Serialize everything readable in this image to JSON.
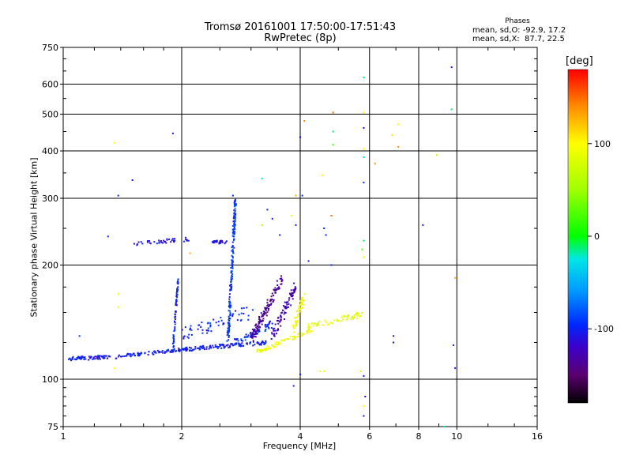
{
  "header": {
    "title_line1": "Tromsø 20161001 17:50:00-17:51:43",
    "title_line2": "RwPretec (8p)",
    "phases_label": "Phases",
    "stat_o": "mean, sd,O: -92.9, 17.2",
    "stat_x": "mean, sd,X:  87.7, 22.5"
  },
  "colorbar": {
    "label": "[deg]",
    "ticks": [
      {
        "value": 100,
        "label": "100"
      },
      {
        "value": 0,
        "label": "0"
      },
      {
        "value": -100,
        "label": "-100"
      }
    ],
    "range": [
      -180,
      180
    ]
  },
  "chart_data": {
    "type": "scatter",
    "title": "Tromsø 20161001 17:50:00-17:51:43",
    "subtitle": "RwPretec (8p)",
    "xlabel": "Frequency [MHz]",
    "ylabel": "Stationary phase Virtual Height [km]",
    "x_scale": "log",
    "y_scale": "log",
    "xlim": [
      1,
      16
    ],
    "ylim": [
      75,
      750
    ],
    "x_ticks": [
      {
        "value": 1,
        "label": "1"
      },
      {
        "value": 2,
        "label": "2"
      },
      {
        "value": 4,
        "label": "4"
      },
      {
        "value": 6,
        "label": "6"
      },
      {
        "value": 8,
        "label": "8"
      },
      {
        "value": 10,
        "label": "10"
      },
      {
        "value": 16,
        "label": "16"
      }
    ],
    "y_ticks": [
      {
        "value": 75,
        "label": "75"
      },
      {
        "value": 100,
        "label": "100"
      },
      {
        "value": 200,
        "label": "200"
      },
      {
        "value": 300,
        "label": "300"
      },
      {
        "value": 400,
        "label": "400"
      },
      {
        "value": 500,
        "label": "500"
      },
      {
        "value": 600,
        "label": "600"
      },
      {
        "value": 750,
        "label": "750"
      }
    ],
    "grid": true,
    "color_variable": "phase [deg]",
    "traces": [
      {
        "f0": 1.02,
        "f1": 1.4,
        "h0": 113,
        "h1": 115,
        "phase": -105,
        "n": 70,
        "jitter": 0.012
      },
      {
        "f0": 1.4,
        "f1": 2.05,
        "h0": 115,
        "h1": 120,
        "phase": -102,
        "n": 90,
        "jitter": 0.01
      },
      {
        "f0": 2.05,
        "f1": 3.3,
        "h0": 120,
        "h1": 125,
        "phase": -100,
        "n": 120,
        "jitter": 0.012
      },
      {
        "f0": 1.9,
        "f1": 1.96,
        "h0": 120,
        "h1": 185,
        "phase": -98,
        "n": 70,
        "jitter": 0.006
      },
      {
        "f0": 1.95,
        "f1": 3.0,
        "h0": 130,
        "h1": 150,
        "phase": -97,
        "n": 60,
        "jitter": 0.04
      },
      {
        "f0": 1.5,
        "f1": 2.1,
        "h0": 228,
        "h1": 234,
        "phase": -108,
        "n": 40,
        "jitter": 0.012
      },
      {
        "f0": 2.4,
        "f1": 2.6,
        "h0": 230,
        "h1": 230,
        "phase": -110,
        "n": 25,
        "jitter": 0.01
      },
      {
        "f0": 2.62,
        "f1": 2.74,
        "h0": 125,
        "h1": 300,
        "phase": -92,
        "n": 180,
        "jitter": 0.012
      },
      {
        "f0": 2.74,
        "f1": 3.4,
        "h0": 125,
        "h1": 140,
        "phase": -95,
        "n": 60,
        "jitter": 0.02
      },
      {
        "f0": 3.0,
        "f1": 3.6,
        "h0": 128,
        "h1": 185,
        "phase": -135,
        "n": 120,
        "jitter": 0.025
      },
      {
        "f0": 3.4,
        "f1": 3.9,
        "h0": 130,
        "h1": 175,
        "phase": -128,
        "n": 80,
        "jitter": 0.025
      },
      {
        "f0": 3.1,
        "f1": 4.3,
        "h0": 118,
        "h1": 135,
        "phase": 92,
        "n": 70,
        "jitter": 0.012
      },
      {
        "f0": 3.85,
        "f1": 4.1,
        "h0": 135,
        "h1": 170,
        "phase": 95,
        "n": 50,
        "jitter": 0.02
      },
      {
        "f0": 4.2,
        "f1": 5.7,
        "h0": 138,
        "h1": 148,
        "phase": 88,
        "n": 60,
        "jitter": 0.018
      }
    ],
    "points": [
      {
        "f": 1.35,
        "h": 420,
        "phase": 100
      },
      {
        "f": 1.9,
        "h": 445,
        "phase": -120
      },
      {
        "f": 1.5,
        "h": 335,
        "phase": -110
      },
      {
        "f": 1.38,
        "h": 305,
        "phase": -100
      },
      {
        "f": 1.3,
        "h": 238,
        "phase": -100
      },
      {
        "f": 1.38,
        "h": 168,
        "phase": 100
      },
      {
        "f": 1.38,
        "h": 155,
        "phase": 100
      },
      {
        "f": 1.1,
        "h": 130,
        "phase": -90
      },
      {
        "f": 1.35,
        "h": 107,
        "phase": 100
      },
      {
        "f": 2.7,
        "h": 305,
        "phase": -95
      },
      {
        "f": 3.2,
        "h": 338,
        "phase": -20
      },
      {
        "f": 3.3,
        "h": 280,
        "phase": -105
      },
      {
        "f": 3.4,
        "h": 265,
        "phase": -100
      },
      {
        "f": 3.2,
        "h": 255,
        "phase": 60
      },
      {
        "f": 3.55,
        "h": 240,
        "phase": -95
      },
      {
        "f": 3.8,
        "h": 270,
        "phase": 90
      },
      {
        "f": 3.9,
        "h": 305,
        "phase": 130
      },
      {
        "f": 4.05,
        "h": 305,
        "phase": -100
      },
      {
        "f": 3.9,
        "h": 255,
        "phase": -100
      },
      {
        "f": 4.0,
        "h": 435,
        "phase": -105
      },
      {
        "f": 4.1,
        "h": 480,
        "phase": 140
      },
      {
        "f": 4.55,
        "h": 345,
        "phase": 100
      },
      {
        "f": 4.6,
        "h": 250,
        "phase": -95
      },
      {
        "f": 4.65,
        "h": 240,
        "phase": -100
      },
      {
        "f": 4.8,
        "h": 270,
        "phase": 150
      },
      {
        "f": 4.85,
        "h": 415,
        "phase": 20
      },
      {
        "f": 4.85,
        "h": 450,
        "phase": -10
      },
      {
        "f": 4.85,
        "h": 505,
        "phase": 150
      },
      {
        "f": 4.8,
        "h": 200,
        "phase": -100
      },
      {
        "f": 4.2,
        "h": 205,
        "phase": -110
      },
      {
        "f": 4.5,
        "h": 105,
        "phase": 95
      },
      {
        "f": 4.6,
        "h": 105,
        "phase": 90
      },
      {
        "f": 4.0,
        "h": 103,
        "phase": -100
      },
      {
        "f": 3.85,
        "h": 96,
        "phase": -105
      },
      {
        "f": 5.8,
        "h": 625,
        "phase": -10
      },
      {
        "f": 5.8,
        "h": 505,
        "phase": 100
      },
      {
        "f": 5.8,
        "h": 460,
        "phase": -110
      },
      {
        "f": 5.8,
        "h": 405,
        "phase": 100
      },
      {
        "f": 5.8,
        "h": 385,
        "phase": -20
      },
      {
        "f": 5.8,
        "h": 330,
        "phase": -95
      },
      {
        "f": 5.8,
        "h": 232,
        "phase": -10
      },
      {
        "f": 5.75,
        "h": 220,
        "phase": 20
      },
      {
        "f": 5.8,
        "h": 210,
        "phase": 80
      },
      {
        "f": 5.7,
        "h": 105,
        "phase": 110
      },
      {
        "f": 5.8,
        "h": 102,
        "phase": -95
      },
      {
        "f": 5.85,
        "h": 90,
        "phase": -110
      },
      {
        "f": 5.8,
        "h": 85,
        "phase": 100
      },
      {
        "f": 5.8,
        "h": 80,
        "phase": -100
      },
      {
        "f": 6.2,
        "h": 370,
        "phase": 140
      },
      {
        "f": 6.85,
        "h": 440,
        "phase": 110
      },
      {
        "f": 7.1,
        "h": 470,
        "phase": 100
      },
      {
        "f": 7.1,
        "h": 410,
        "phase": 140
      },
      {
        "f": 6.9,
        "h": 130,
        "phase": -110
      },
      {
        "f": 6.9,
        "h": 125,
        "phase": -100
      },
      {
        "f": 8.2,
        "h": 255,
        "phase": -105
      },
      {
        "f": 8.9,
        "h": 390,
        "phase": 70
      },
      {
        "f": 9.3,
        "h": 75,
        "phase": -20
      },
      {
        "f": 9.7,
        "h": 665,
        "phase": -110
      },
      {
        "f": 9.7,
        "h": 515,
        "phase": -10
      },
      {
        "f": 9.9,
        "h": 185,
        "phase": 130
      },
      {
        "f": 9.8,
        "h": 123,
        "phase": -100
      },
      {
        "f": 9.9,
        "h": 107,
        "phase": -110
      },
      {
        "f": 1.8,
        "h": 232,
        "phase": -110
      },
      {
        "f": 2.1,
        "h": 215,
        "phase": 130
      }
    ]
  }
}
